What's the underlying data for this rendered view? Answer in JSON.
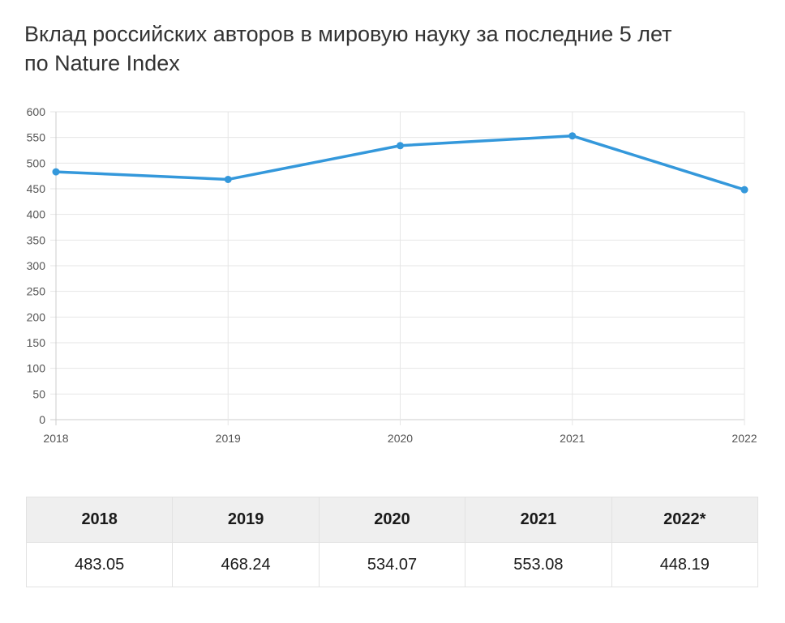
{
  "title_lines": [
    "Вклад российских авторов в мировую науку за последние 5 лет",
    "по Nature Index"
  ],
  "chart_data": {
    "type": "line",
    "x": [
      "2018",
      "2019",
      "2020",
      "2021",
      "2022"
    ],
    "series": [
      {
        "values": [
          483.05,
          468.24,
          534.07,
          553.08,
          448.19
        ]
      }
    ],
    "ylim": [
      0,
      600
    ],
    "yticks": [
      0,
      50,
      100,
      150,
      200,
      250,
      300,
      350,
      400,
      450,
      500,
      550,
      600
    ],
    "grid": true,
    "line_color": "#3498db",
    "grid_color": "#e6e6e6",
    "axis_color": "#cccccc"
  },
  "table": {
    "headers": [
      "2018",
      "2019",
      "2020",
      "2021",
      "2022*"
    ],
    "values": [
      "483.05",
      "468.24",
      "534.07",
      "553.08",
      "448.19"
    ]
  }
}
